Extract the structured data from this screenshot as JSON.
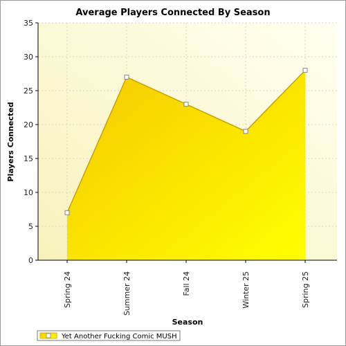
{
  "chart_data": {
    "type": "area",
    "title": "Average Players Connected By Season",
    "xlabel": "Season",
    "ylabel": "Players Connected",
    "categories": [
      "Spring 24",
      "Summer 24",
      "Fall 24",
      "Winter 25",
      "Spring 25"
    ],
    "series": [
      {
        "name": "Yet Another Fucking Comic MUSH",
        "values": [
          7,
          27,
          23,
          19,
          28
        ]
      }
    ],
    "ylim": [
      0,
      35
    ],
    "yticks": [
      0,
      5,
      10,
      15,
      20,
      25,
      30,
      35
    ],
    "grid": true,
    "legend_position": "bottom-left",
    "colors": {
      "fill_start": "#f5c800",
      "fill_end": "#ffff00",
      "line": "#c9a200",
      "plot_bg_start": "#f7f2bc",
      "plot_bg_end": "#fffff0",
      "marker_fill": "#ffffff"
    }
  }
}
